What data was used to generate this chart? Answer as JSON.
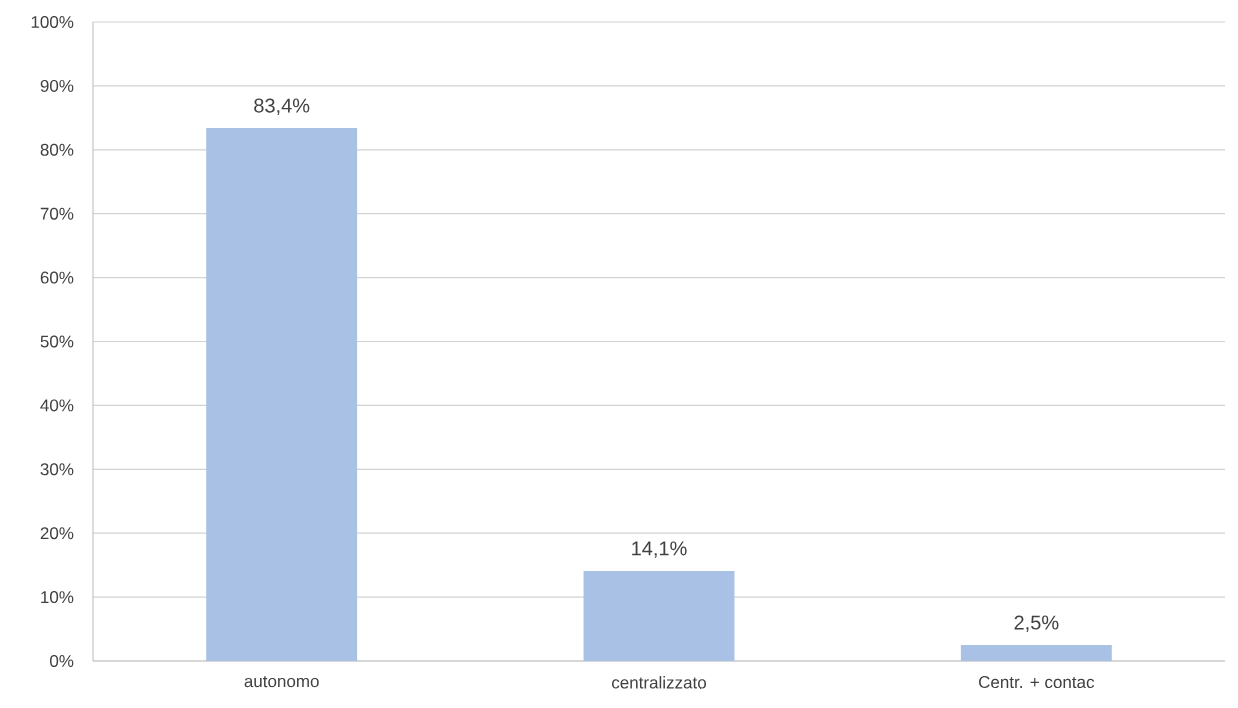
{
  "chart_data": {
    "type": "bar",
    "categories": [
      "autonomo",
      "centralizzato",
      "Centr. + contac"
    ],
    "values": [
      83.4,
      14.1,
      2.5
    ],
    "value_labels": [
      "83,4%",
      "14,1%",
      "2,5%"
    ],
    "color": "#a9c1e5",
    "ylim": [
      0,
      100
    ],
    "yticks": [
      {
        "value": 0,
        "label": "0%"
      },
      {
        "value": 10,
        "label": "10%"
      },
      {
        "value": 20,
        "label": "20%"
      },
      {
        "value": 30,
        "label": "30%"
      },
      {
        "value": 40,
        "label": "40%"
      },
      {
        "value": 50,
        "label": "50%"
      },
      {
        "value": 60,
        "label": "60%"
      },
      {
        "value": 70,
        "label": "70%"
      },
      {
        "value": 80,
        "label": "80%"
      },
      {
        "value": 90,
        "label": "90%"
      },
      {
        "value": 100,
        "label": "100%"
      }
    ],
    "grid": "y"
  }
}
